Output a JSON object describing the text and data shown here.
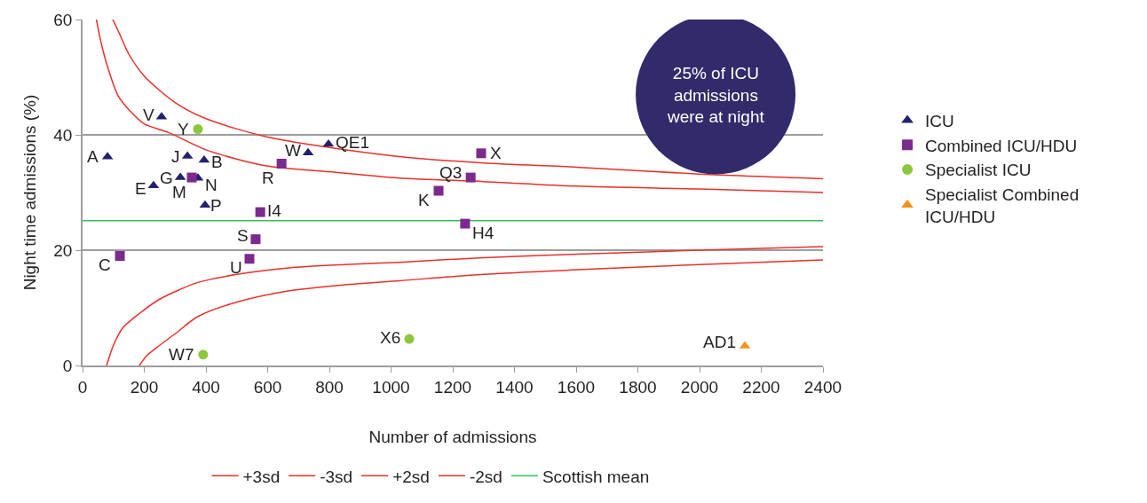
{
  "chart_data": {
    "type": "scatter",
    "xlabel": "Number of admissions",
    "ylabel": "Night time admissions (%)",
    "xlim": [
      0,
      2400
    ],
    "xticks": [
      0,
      200,
      400,
      600,
      800,
      1000,
      1200,
      1400,
      1600,
      1800,
      2000,
      2200,
      2400
    ],
    "ylim": [
      0,
      60
    ],
    "yticks": [
      0,
      20,
      40,
      60
    ],
    "grid": "y",
    "legend": "right",
    "series": [
      {
        "name": "ICU",
        "color": "#25206e",
        "marker": "triangle",
        "x": [
          81,
          256,
          340,
          394,
          317,
          374,
          230,
          397,
          731,
          797
        ],
        "values": [
          36.2,
          43.1,
          36.3,
          35.6,
          32.6,
          32.5,
          31.2,
          27.8,
          36.9,
          38.4
        ]
      },
      {
        "name": "Combined ICU/HDU",
        "color": "#7b2a8e",
        "marker": "square",
        "x": [
          354,
          121,
          576,
          561,
          541,
          645,
          1292,
          1258,
          1154,
          1240
        ],
        "values": [
          32.6,
          19.0,
          26.6,
          21.9,
          18.5,
          35.0,
          36.8,
          32.6,
          30.3,
          24.6
        ]
      },
      {
        "name": "Specialist ICU",
        "color": "#8dc63f",
        "marker": "circle",
        "x": [
          374,
          391,
          1059
        ],
        "values": [
          41.0,
          1.9,
          4.6
        ]
      },
      {
        "name": "Specialist Combined ICU/HDU",
        "color": "#f7931e",
        "marker": "triangle",
        "x": [
          2147
        ],
        "values": [
          3.4
        ]
      },
      {
        "name": "+3sd",
        "type": "line",
        "color": "#e8302a",
        "marker": "none",
        "x": [
          98,
          120,
          150,
          200,
          300,
          400,
          600,
          800,
          1000,
          1300,
          1600,
          2000,
          2400
        ],
        "values": [
          60,
          57.5,
          54,
          50.2,
          45.6,
          42.8,
          39.6,
          37.8,
          36.4,
          35.1,
          34.4,
          33.2,
          32.4
        ]
      },
      {
        "name": "-3sd",
        "type": "line",
        "color": "#e8302a",
        "marker": "none",
        "x": [
          184,
          210,
          250,
          300,
          374,
          500,
          662,
          850,
          1027,
          1300,
          1603,
          2000,
          2400
        ],
        "values": [
          0,
          1.8,
          3.5,
          5.5,
          8.5,
          11.0,
          12.9,
          14.0,
          14.7,
          15.8,
          16.6,
          17.5,
          18.3
        ]
      },
      {
        "name": "+2sd",
        "type": "line",
        "color": "#e8302a",
        "marker": "none",
        "x": [
          45,
          60,
          80,
          115,
          160,
          200,
          279,
          400,
          587,
          800,
          1027,
          1300,
          1603,
          2000,
          2400
        ],
        "values": [
          60,
          56,
          52,
          46.8,
          43.8,
          41.9,
          40.4,
          37.4,
          34.7,
          33.6,
          32.5,
          31.9,
          31.1,
          30.6,
          30.0
        ]
      },
      {
        "name": "-2sd",
        "type": "line",
        "color": "#e8302a",
        "marker": "none",
        "x": [
          78,
          100,
          130,
          184,
          250,
          374,
          500,
          662,
          850,
          1027,
          1300,
          1603,
          2000,
          2400
        ],
        "values": [
          0,
          3.5,
          6.5,
          9.0,
          11.5,
          14.4,
          15.8,
          16.9,
          17.5,
          17.9,
          18.7,
          19.3,
          20.0,
          20.6
        ]
      }
    ],
    "ref_lines": [
      {
        "axis": "y",
        "value": 25.1,
        "label": "Scottish mean",
        "color": "#3dbb5a"
      }
    ],
    "annotations": [
      "25% of ICU admissions were at night",
      {
        "text": "A",
        "x": 81,
        "y": 36.2
      },
      {
        "text": "V",
        "x": 256,
        "y": 43.1
      },
      {
        "text": "Y",
        "x": 374,
        "y": 41.0
      },
      {
        "text": "J",
        "x": 340,
        "y": 36.3
      },
      {
        "text": "B",
        "x": 394,
        "y": 35.6
      },
      {
        "text": "G",
        "x": 317,
        "y": 32.6
      },
      {
        "text": "M",
        "x": 354,
        "y": 32.6
      },
      {
        "text": "N",
        "x": 374,
        "y": 32.5
      },
      {
        "text": "E",
        "x": 230,
        "y": 31.2
      },
      {
        "text": "P",
        "x": 397,
        "y": 27.8
      },
      {
        "text": "C",
        "x": 121,
        "y": 19.0
      },
      {
        "text": "I4",
        "x": 576,
        "y": 26.6
      },
      {
        "text": "S",
        "x": 561,
        "y": 21.9
      },
      {
        "text": "U",
        "x": 541,
        "y": 18.5
      },
      {
        "text": "W7",
        "x": 391,
        "y": 1.9
      },
      {
        "text": "R",
        "x": 645,
        "y": 35.0
      },
      {
        "text": "W",
        "x": 731,
        "y": 36.9
      },
      {
        "text": "QE1",
        "x": 797,
        "y": 38.4
      },
      {
        "text": "X",
        "x": 1292,
        "y": 36.8
      },
      {
        "text": "Q3",
        "x": 1258,
        "y": 32.6
      },
      {
        "text": "K",
        "x": 1154,
        "y": 30.3
      },
      {
        "text": "H4",
        "x": 1240,
        "y": 24.6
      },
      {
        "text": "X6",
        "x": 1059,
        "y": 4.6
      },
      {
        "text": "AD1",
        "x": 2147,
        "y": 3.4
      }
    ]
  }
}
